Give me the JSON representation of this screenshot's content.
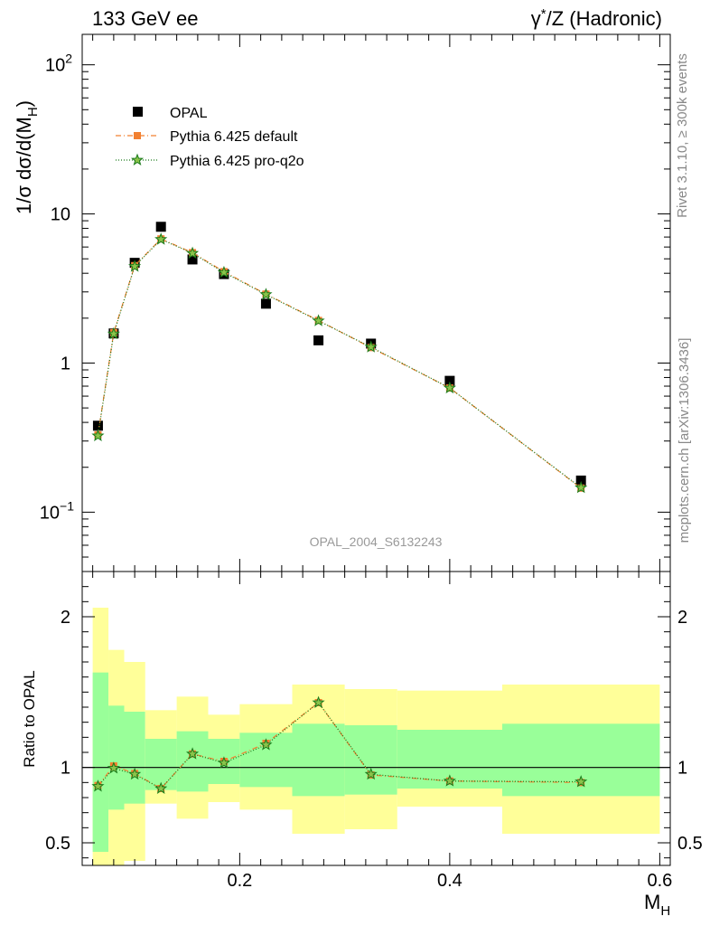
{
  "chart_data": [
    {
      "type": "scatter",
      "title_left": "133 GeV ee",
      "title_right": "γ*/Z (Hadronic)",
      "ylabel": "1/σ dσ/d(M",
      "ylabel_sub": "H",
      "ylabel_tail": ")",
      "yscale": "log",
      "ylim": [
        0.04,
        160
      ],
      "xlim": [
        0.05,
        0.61
      ],
      "y_tick_labels": [
        {
          "value": 100,
          "base": "10",
          "exp": "2"
        },
        {
          "value": 10,
          "base": "10",
          "exp": ""
        },
        {
          "value": 1,
          "base": "1",
          "exp": ""
        },
        {
          "value": 0.1,
          "base": "10",
          "exp": "−1"
        }
      ],
      "watermark": "OPAL_2004_S6132243",
      "legend_position": "top-left",
      "series": [
        {
          "name": "OPAL",
          "color": "#000000",
          "marker": "square",
          "x": [
            0.065,
            0.08,
            0.1,
            0.125,
            0.155,
            0.185,
            0.225,
            0.275,
            0.325,
            0.4,
            0.525
          ],
          "y": [
            0.38,
            1.58,
            4.7,
            8.2,
            4.95,
            3.95,
            2.5,
            1.42,
            1.35,
            0.76,
            0.163
          ]
        },
        {
          "name": "Pythia 6.425 default",
          "color": "#f28030",
          "marker": "square",
          "line": "dashdot",
          "x": [
            0.065,
            0.08,
            0.1,
            0.125,
            0.155,
            0.185,
            0.225,
            0.275,
            0.325,
            0.4,
            0.525
          ],
          "y": [
            0.33,
            1.6,
            4.5,
            6.8,
            5.5,
            4.1,
            2.9,
            1.93,
            1.27,
            0.68,
            0.145
          ]
        },
        {
          "name": "Pythia 6.425 pro-q2o",
          "color": "#1a7a1a",
          "marker": "star",
          "line": "dotted",
          "x": [
            0.065,
            0.08,
            0.1,
            0.125,
            0.155,
            0.185,
            0.225,
            0.275,
            0.325,
            0.4,
            0.525
          ],
          "y": [
            0.325,
            1.57,
            4.45,
            6.75,
            5.45,
            4.05,
            2.88,
            1.92,
            1.28,
            0.68,
            0.146
          ]
        }
      ]
    },
    {
      "type": "scatter",
      "ylabel": "Ratio to OPAL",
      "xlabel": "M",
      "xlabel_sub": "H",
      "ylim": [
        0.35,
        2.3
      ],
      "xlim": [
        0.05,
        0.61
      ],
      "y_ticks": [
        0.5,
        1,
        2
      ],
      "y_tick_labels": [
        "0.5",
        "1",
        "2"
      ],
      "x_ticks": [
        0.2,
        0.4,
        0.6
      ],
      "x_tick_labels": [
        "0.2",
        "0.4",
        "0.6"
      ],
      "bands": {
        "bins": [
          [
            0.06,
            0.075
          ],
          [
            0.075,
            0.09
          ],
          [
            0.09,
            0.11
          ],
          [
            0.11,
            0.14
          ],
          [
            0.14,
            0.17
          ],
          [
            0.17,
            0.2
          ],
          [
            0.2,
            0.25
          ],
          [
            0.25,
            0.3
          ],
          [
            0.3,
            0.35
          ],
          [
            0.35,
            0.45
          ],
          [
            0.45,
            0.6
          ]
        ],
        "outer": [
          [
            0.3,
            2.06
          ],
          [
            0.3,
            1.78
          ],
          [
            0.38,
            1.7
          ],
          [
            0.76,
            1.38
          ],
          [
            0.66,
            1.47
          ],
          [
            0.77,
            1.35
          ],
          [
            0.72,
            1.42
          ],
          [
            0.56,
            1.55
          ],
          [
            0.59,
            1.52
          ],
          [
            0.74,
            1.51
          ],
          [
            0.56,
            1.55
          ]
        ],
        "inner": [
          [
            0.44,
            1.63
          ],
          [
            0.72,
            1.41
          ],
          [
            0.76,
            1.37
          ],
          [
            0.85,
            1.19
          ],
          [
            0.84,
            1.24
          ],
          [
            0.89,
            1.19
          ],
          [
            0.87,
            1.23
          ],
          [
            0.81,
            1.29
          ],
          [
            0.82,
            1.28
          ],
          [
            0.86,
            1.25
          ],
          [
            0.81,
            1.29
          ]
        ],
        "outer_color": "#ffff99",
        "inner_color": "#99ff99"
      },
      "series": [
        {
          "name": "Pythia 6.425 default",
          "color": "#f28030",
          "marker": "square",
          "line": "dashdot",
          "x": [
            0.065,
            0.08,
            0.1,
            0.125,
            0.155,
            0.185,
            0.225,
            0.275,
            0.325,
            0.4,
            0.525
          ],
          "y": [
            0.88,
            1.01,
            0.96,
            0.86,
            1.09,
            1.04,
            1.16,
            1.43,
            0.95,
            0.91,
            0.9
          ]
        },
        {
          "name": "Pythia 6.425 pro-q2o",
          "color": "#1a7a1a",
          "marker": "star",
          "line": "dotted",
          "x": [
            0.065,
            0.08,
            0.1,
            0.125,
            0.155,
            0.185,
            0.225,
            0.275,
            0.325,
            0.4,
            0.525
          ],
          "y": [
            0.875,
            0.995,
            0.955,
            0.86,
            1.09,
            1.03,
            1.15,
            1.43,
            0.955,
            0.91,
            0.905
          ]
        }
      ]
    }
  ],
  "side_text": {
    "rivet": "Rivet 3.1.10, ≥ 300k events",
    "mcplots": "mcplots.cern.ch [arXiv:1306.3436]"
  }
}
